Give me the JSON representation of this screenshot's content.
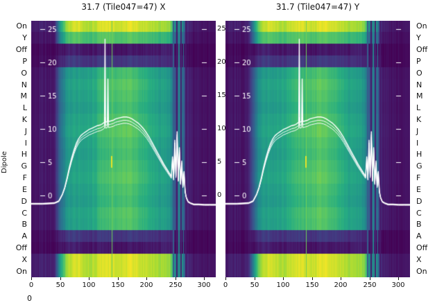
{
  "figure": {
    "dipole_axis_label": "Dipole",
    "dipole_labels": [
      "On",
      "Y",
      "Off",
      "P",
      "O",
      "N",
      "M",
      "L",
      "K",
      "J",
      "I",
      "H",
      "G",
      "F",
      "E",
      "D",
      "C",
      "B",
      "A",
      "Off",
      "X",
      "On"
    ],
    "bottom_left_tick": "0"
  },
  "chart_data": {
    "type": "heatmap",
    "panels": [
      {
        "pol": "X",
        "title": "31.7 (Tile047=47) X"
      },
      {
        "pol": "Y",
        "title": "31.7 (Tile047=47) Y"
      }
    ],
    "x_range": [
      0,
      320
    ],
    "x_label_ticks": [
      0,
      50,
      100,
      150,
      200,
      250,
      300
    ],
    "y_ticks": [
      25,
      20,
      15,
      10,
      5,
      0
    ],
    "y_range": [
      -12,
      26
    ],
    "rows": [
      "On",
      "Y",
      "Off",
      "P",
      "O",
      "N",
      "M",
      "L",
      "K",
      "J",
      "I",
      "H",
      "G",
      "F",
      "E",
      "D",
      "C",
      "B",
      "A",
      "Off",
      "X",
      "On"
    ],
    "row_types": [
      "bright",
      "dim",
      "dark",
      "dark2",
      "dipole",
      "dipole",
      "dipole",
      "dipole",
      "dipole",
      "dipole",
      "dipole",
      "dipole",
      "dipole",
      "dipole",
      "dipole",
      "dipole",
      "dipole",
      "dipole",
      "dark2",
      "dark",
      "bright",
      "bright"
    ],
    "row_gain": [
      1,
      1,
      1,
      1,
      0.97,
      1.03,
      1.0,
      0.96,
      1.02,
      1.05,
      1.0,
      0.97,
      1.01,
      1.04,
      0.99,
      0.96,
      1.02,
      1.0,
      1,
      1,
      1,
      1
    ],
    "col_x": [
      0,
      10,
      20,
      30,
      40,
      50,
      60,
      70,
      80,
      90,
      100,
      110,
      120,
      130,
      140,
      150,
      160,
      170,
      180,
      190,
      200,
      210,
      220,
      230,
      240,
      250,
      260,
      270,
      280,
      290,
      300,
      310,
      320
    ],
    "profiles": {
      "dipole": [
        0.05,
        0.06,
        0.07,
        0.06,
        0.09,
        0.35,
        0.52,
        0.55,
        0.56,
        0.57,
        0.58,
        0.6,
        0.66,
        0.68,
        0.7,
        0.72,
        0.74,
        0.73,
        0.7,
        0.66,
        0.62,
        0.58,
        0.56,
        0.55,
        0.52,
        0.25,
        0.42,
        0.1,
        0.07,
        0.06,
        0.05,
        0.05,
        0.05
      ],
      "bright": [
        0.08,
        0.09,
        0.1,
        0.09,
        0.12,
        0.55,
        0.85,
        0.92,
        0.95,
        0.91,
        0.88,
        0.9,
        0.94,
        0.96,
        0.95,
        0.93,
        0.95,
        0.97,
        0.95,
        0.92,
        0.9,
        0.88,
        0.87,
        0.86,
        0.84,
        0.45,
        0.6,
        0.12,
        0.08,
        0.07,
        0.06,
        0.06,
        0.06
      ],
      "dim": [
        0.05,
        0.06,
        0.06,
        0.06,
        0.08,
        0.45,
        0.68,
        0.72,
        0.74,
        0.71,
        0.69,
        0.7,
        0.73,
        0.75,
        0.74,
        0.72,
        0.73,
        0.75,
        0.73,
        0.71,
        0.69,
        0.67,
        0.66,
        0.65,
        0.63,
        0.32,
        0.45,
        0.08,
        0.05,
        0.05,
        0.04,
        0.04,
        0.04
      ],
      "dark": [
        0.02,
        0.02,
        0.03,
        0.02,
        0.03,
        0.05,
        0.08,
        0.09,
        0.08,
        0.07,
        0.06,
        0.06,
        0.07,
        0.07,
        0.06,
        0.06,
        0.06,
        0.07,
        0.06,
        0.06,
        0.06,
        0.06,
        0.07,
        0.09,
        0.08,
        0.04,
        0.05,
        0.02,
        0.02,
        0.02,
        0.02,
        0.02,
        0.02
      ],
      "dark2": [
        0.03,
        0.03,
        0.04,
        0.03,
        0.05,
        0.1,
        0.16,
        0.18,
        0.17,
        0.16,
        0.15,
        0.15,
        0.17,
        0.18,
        0.17,
        0.16,
        0.17,
        0.18,
        0.17,
        0.16,
        0.15,
        0.14,
        0.14,
        0.13,
        0.12,
        0.06,
        0.1,
        0.03,
        0.02,
        0.02,
        0.02,
        0.02,
        0.02
      ]
    },
    "vlines": [
      {
        "x": 140,
        "v": 0.78,
        "w": 1
      },
      {
        "x": 246,
        "v": 0.3,
        "w": 2
      },
      {
        "x": 251,
        "v": 0.08,
        "w": 2
      },
      {
        "x": 255,
        "v": 0.45,
        "w": 2
      },
      {
        "x": 259,
        "v": 0.1,
        "w": 2
      },
      {
        "x": 263,
        "v": 0.38,
        "w": 1
      },
      {
        "x": 267,
        "v": 0.08,
        "w": 2
      }
    ],
    "yellow_dash": {
      "x": 140,
      "row_start": 11.6,
      "row_span": 1.0,
      "v": 0.97
    },
    "overlay_curve_color": "#ffffff",
    "curve": [
      [
        0,
        -1.2
      ],
      [
        20,
        -1.2
      ],
      [
        40,
        -1.1
      ],
      [
        48,
        -0.8
      ],
      [
        54,
        0.2
      ],
      [
        58,
        1.2
      ],
      [
        62,
        2.6
      ],
      [
        66,
        4.2
      ],
      [
        70,
        5.6
      ],
      [
        74,
        6.8
      ],
      [
        78,
        7.8
      ],
      [
        82,
        8.5
      ],
      [
        86,
        9.0
      ],
      [
        90,
        9.3
      ],
      [
        95,
        9.6
      ],
      [
        100,
        9.9
      ],
      [
        105,
        10.1
      ],
      [
        110,
        10.3
      ],
      [
        115,
        10.5
      ],
      [
        120,
        10.6
      ],
      [
        124,
        10.8
      ],
      [
        127,
        11.0
      ],
      [
        128,
        23.5
      ],
      [
        129,
        11.0
      ],
      [
        132,
        11.1
      ],
      [
        133,
        17.5
      ],
      [
        134,
        11.1
      ],
      [
        138,
        11.2
      ],
      [
        142,
        11.3
      ],
      [
        146,
        11.5
      ],
      [
        150,
        11.6
      ],
      [
        155,
        11.7
      ],
      [
        160,
        11.8
      ],
      [
        165,
        11.8
      ],
      [
        170,
        11.7
      ],
      [
        175,
        11.5
      ],
      [
        180,
        11.2
      ],
      [
        185,
        10.9
      ],
      [
        190,
        10.5
      ],
      [
        195,
        10.0
      ],
      [
        200,
        9.4
      ],
      [
        205,
        8.7
      ],
      [
        210,
        7.9
      ],
      [
        215,
        7.1
      ],
      [
        220,
        6.3
      ],
      [
        225,
        5.5
      ],
      [
        230,
        4.7
      ],
      [
        235,
        4.0
      ],
      [
        240,
        3.3
      ],
      [
        243,
        2.9
      ],
      [
        245,
        5.8
      ],
      [
        247,
        2.6
      ],
      [
        249,
        8.3
      ],
      [
        251,
        3.0
      ],
      [
        253,
        9.6
      ],
      [
        255,
        2.4
      ],
      [
        257,
        7.2
      ],
      [
        259,
        1.9
      ],
      [
        261,
        5.2
      ],
      [
        263,
        1.4
      ],
      [
        265,
        3.6
      ],
      [
        267,
        0.6
      ],
      [
        269,
        -0.3
      ],
      [
        272,
        -0.9
      ],
      [
        276,
        -1.1
      ],
      [
        282,
        -1.3
      ],
      [
        290,
        -1.3
      ],
      [
        300,
        -1.35
      ],
      [
        310,
        -1.35
      ],
      [
        320,
        -1.35
      ]
    ],
    "n_traces": 3,
    "colormap": "viridis",
    "colormap_stops": [
      [
        0.0,
        "#440154"
      ],
      [
        0.13,
        "#472c7a"
      ],
      [
        0.25,
        "#3b518b"
      ],
      [
        0.38,
        "#2c718e"
      ],
      [
        0.5,
        "#21918c"
      ],
      [
        0.62,
        "#27ad81"
      ],
      [
        0.75,
        "#5cc863"
      ],
      [
        0.88,
        "#aadc32"
      ],
      [
        1.0,
        "#fde725"
      ]
    ]
  }
}
